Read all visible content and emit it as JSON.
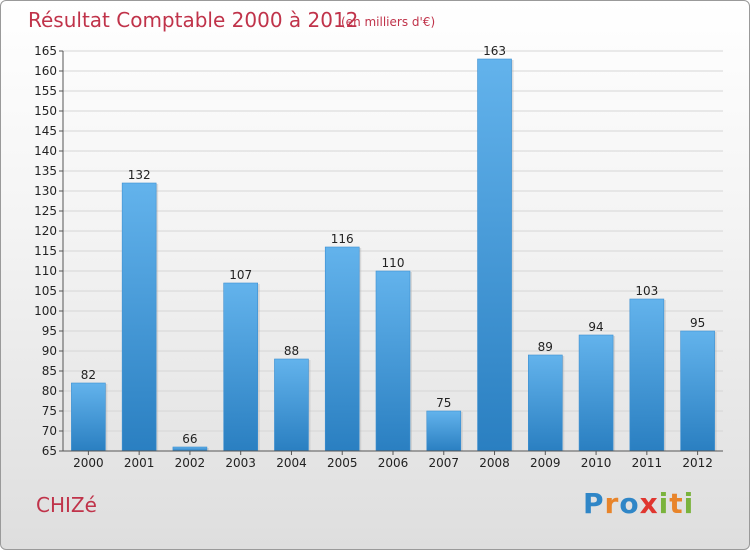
{
  "commune": "CHIZé",
  "brand": {
    "letters": [
      {
        "ch": "P",
        "color": "#2f86c7"
      },
      {
        "ch": "r",
        "color": "#e8842a"
      },
      {
        "ch": "o",
        "color": "#2f86c7"
      },
      {
        "ch": "x",
        "color": "#e0362f"
      },
      {
        "ch": "i",
        "color": "#7ab33c"
      },
      {
        "ch": "t",
        "color": "#e8842a"
      },
      {
        "ch": "i",
        "color": "#7ab33c"
      }
    ]
  },
  "colors": {
    "bar_light": "#63b3ec",
    "bar_dark": "#2a7fc1",
    "title": "#c0334a"
  },
  "chart_data": {
    "type": "bar",
    "title": "Résultat Comptable 2000 à 2012",
    "subtitle": "(en milliers d'€)",
    "xlabel": "",
    "ylabel": "",
    "categories": [
      "2000",
      "2001",
      "2002",
      "2003",
      "2004",
      "2005",
      "2006",
      "2007",
      "2008",
      "2009",
      "2010",
      "2011",
      "2012"
    ],
    "values": [
      82,
      132,
      66,
      107,
      88,
      116,
      110,
      75,
      163,
      89,
      94,
      103,
      95
    ],
    "ylim": [
      65,
      165
    ],
    "ytick_step": 5,
    "grid": true,
    "legend": "none"
  }
}
